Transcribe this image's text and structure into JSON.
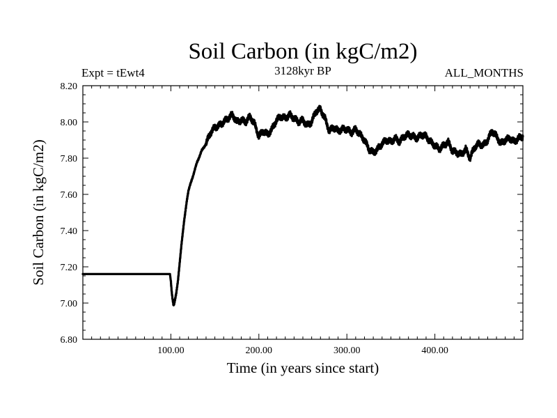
{
  "chart_data": {
    "type": "line",
    "title": "Soil Carbon (in kgC/m2)",
    "subtitle": "3128kyr BP",
    "experiment_label": "Expt = tEwt4",
    "period_label": "ALL_MONTHS",
    "xlabel": "Time (in years since start)",
    "ylabel": "Soil Carbon (in kgC/m2)",
    "xlim": [
      0,
      500
    ],
    "ylim": [
      6.8,
      8.2
    ],
    "x_ticks": [
      {
        "value": 100,
        "label": "100.00"
      },
      {
        "value": 200,
        "label": "200.00"
      },
      {
        "value": 300,
        "label": "300.00"
      },
      {
        "value": 400,
        "label": "400.00"
      }
    ],
    "y_ticks": [
      {
        "value": 6.8,
        "label": "6.80"
      },
      {
        "value": 7.0,
        "label": "7.00"
      },
      {
        "value": 7.2,
        "label": "7.20"
      },
      {
        "value": 7.4,
        "label": "7.40"
      },
      {
        "value": 7.6,
        "label": "7.60"
      },
      {
        "value": 7.8,
        "label": "7.80"
      },
      {
        "value": 8.0,
        "label": "8.00"
      },
      {
        "value": 8.2,
        "label": "8.20"
      }
    ],
    "grid": false,
    "series": [
      {
        "name": "Soil Carbon",
        "color": "#000000",
        "x": [
          0,
          50,
          99,
          100,
          101,
          102,
          103,
          104,
          106,
          108,
          110,
          112,
          115,
          118,
          120,
          125,
          130,
          135,
          140,
          145,
          150,
          155,
          160,
          165,
          170,
          175,
          180,
          185,
          190,
          195,
          200,
          205,
          210,
          215,
          220,
          225,
          230,
          235,
          240,
          245,
          250,
          255,
          260,
          265,
          270,
          275,
          280,
          285,
          290,
          295,
          300,
          305,
          310,
          315,
          320,
          325,
          330,
          335,
          340,
          345,
          350,
          355,
          360,
          365,
          370,
          375,
          380,
          385,
          390,
          395,
          400,
          405,
          410,
          415,
          420,
          425,
          430,
          435,
          440,
          445,
          450,
          455,
          460,
          465,
          470,
          475,
          480,
          485,
          490,
          495,
          500
        ],
        "values": [
          7.16,
          7.16,
          7.16,
          7.12,
          7.06,
          7.02,
          6.99,
          7.0,
          7.05,
          7.12,
          7.22,
          7.32,
          7.45,
          7.56,
          7.62,
          7.7,
          7.78,
          7.84,
          7.88,
          7.94,
          7.97,
          7.98,
          8.0,
          8.02,
          8.04,
          8.0,
          8.01,
          8.0,
          8.03,
          7.99,
          7.92,
          7.95,
          7.93,
          7.96,
          8.01,
          8.03,
          8.02,
          8.04,
          8.02,
          8.0,
          8.01,
          7.98,
          8.0,
          8.06,
          8.07,
          8.02,
          7.95,
          7.97,
          7.95,
          7.96,
          7.96,
          7.94,
          7.96,
          7.93,
          7.9,
          7.85,
          7.83,
          7.85,
          7.88,
          7.9,
          7.89,
          7.91,
          7.89,
          7.92,
          7.93,
          7.92,
          7.91,
          7.93,
          7.92,
          7.89,
          7.87,
          7.85,
          7.87,
          7.89,
          7.84,
          7.83,
          7.82,
          7.85,
          7.8,
          7.86,
          7.88,
          7.87,
          7.9,
          7.95,
          7.92,
          7.88,
          7.9,
          7.91,
          7.89,
          7.91,
          7.92
        ]
      }
    ]
  }
}
